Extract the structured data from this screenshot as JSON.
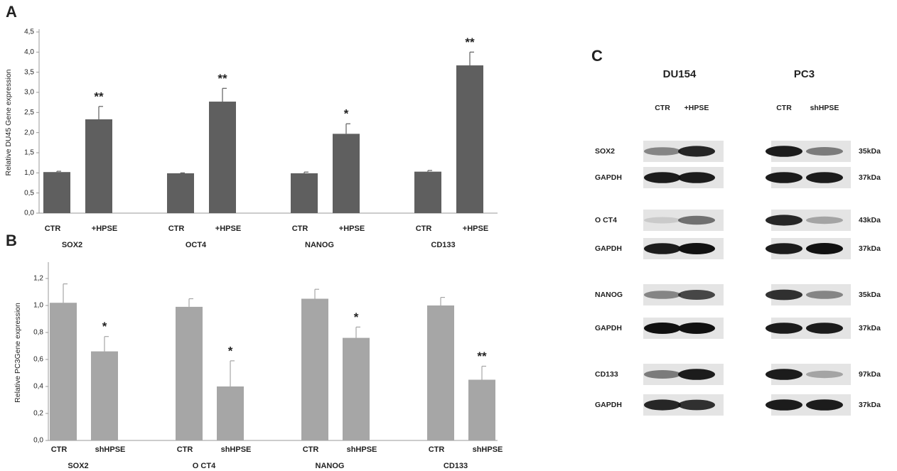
{
  "chart_data": [
    {
      "type": "bar",
      "panel": "A",
      "ylabel": "Relative DU45 Gene expression",
      "categories": [
        "SOX2",
        "OCT4",
        "NANOG",
        "CD133"
      ],
      "series": [
        {
          "name": "CTR",
          "color": "#5f5f5f",
          "values": [
            1.02,
            0.99,
            0.99,
            1.03
          ],
          "errors": [
            0.02,
            0.01,
            0.03,
            0.03
          ]
        },
        {
          "name": "+HPSE",
          "color": "#5f5f5f",
          "values": [
            2.33,
            2.77,
            1.97,
            3.67
          ],
          "errors": [
            0.32,
            0.33,
            0.25,
            0.33
          ],
          "annotations": [
            "**",
            "**",
            "*",
            "**"
          ]
        }
      ],
      "ylim": [
        0,
        4.5
      ],
      "yticks": [
        {
          "value": 0,
          "label": "0,0"
        },
        {
          "value": 0.5,
          "label": "0,5"
        },
        {
          "value": 1,
          "label": "1,0"
        },
        {
          "value": 1.5,
          "label": "1,5"
        },
        {
          "value": 2,
          "label": "2,0"
        },
        {
          "value": 2.5,
          "label": "2,5"
        },
        {
          "value": 3,
          "label": "3,0"
        },
        {
          "value": 3.5,
          "label": "3,5"
        },
        {
          "value": 4,
          "label": "4,0"
        },
        {
          "value": 4.5,
          "label": "4,5"
        }
      ]
    },
    {
      "type": "bar",
      "panel": "B",
      "ylabel": "Relative PC3Gene expression",
      "categories": [
        "SOX2",
        "O CT4",
        "NANOG",
        "CD133"
      ],
      "series": [
        {
          "name": "CTR",
          "color": "#a6a6a6",
          "values": [
            1.02,
            0.99,
            1.05,
            1.0
          ],
          "errors": [
            0.14,
            0.06,
            0.07,
            0.06
          ]
        },
        {
          "name": "shHPSE",
          "color": "#a6a6a6",
          "values": [
            0.66,
            0.4,
            0.76,
            0.45
          ],
          "errors": [
            0.11,
            0.19,
            0.08,
            0.1
          ],
          "annotations": [
            "*",
            "*",
            "*",
            "**"
          ]
        }
      ],
      "ylim": [
        0,
        1.3
      ],
      "yticks": [
        {
          "value": 0,
          "label": "0,0"
        },
        {
          "value": 0.2,
          "label": "0,2"
        },
        {
          "value": 0.4,
          "label": "0,4"
        },
        {
          "value": 0.6,
          "label": "0,6"
        },
        {
          "value": 0.8,
          "label": "0,8"
        },
        {
          "value": 1,
          "label": "1,0"
        },
        {
          "value": 1.2,
          "label": "1,2"
        }
      ]
    }
  ],
  "blot": {
    "panel": "C",
    "lines": [
      {
        "name": "DU154",
        "lanes": [
          "CTR",
          "+HPSE"
        ]
      },
      {
        "name": "PC3",
        "lanes": [
          "CTR",
          "shHPSE"
        ]
      }
    ],
    "rows": [
      {
        "label": "SOX2",
        "size": "35kDa"
      },
      {
        "label": "GAPDH",
        "size": "37kDa"
      },
      {
        "label": "O CT4",
        "size": "43kDa"
      },
      {
        "label": "GAPDH",
        "size": "37kDa"
      },
      {
        "label": "NANOG",
        "size": "35kDa"
      },
      {
        "label": "GAPDH",
        "size": "37kDa"
      },
      {
        "label": "CD133",
        "size": "97kDa"
      },
      {
        "label": "GAPDH",
        "size": "37kDa"
      }
    ]
  }
}
